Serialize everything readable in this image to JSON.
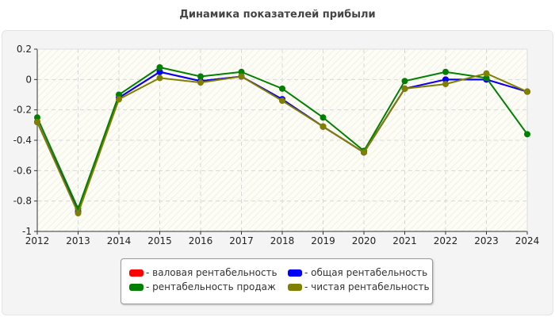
{
  "chart_data": {
    "type": "line",
    "title": "Динамика показателей прибыли",
    "x": [
      "2012",
      "2013",
      "2014",
      "2015",
      "2016",
      "2017",
      "2018",
      "2019",
      "2020",
      "2021",
      "2022",
      "2023",
      "2024"
    ],
    "ylim": [
      -1,
      0.2
    ],
    "yticks": [
      "0.2",
      "0",
      "-0.2",
      "-0.4",
      "-0.6",
      "-0.8",
      "-1"
    ],
    "ytick_values": [
      0.2,
      0,
      -0.2,
      -0.4,
      -0.6,
      -0.8,
      -1
    ],
    "grid": true,
    "legend_placement": "bottom",
    "series": [
      {
        "name": "- валовая рентабельность",
        "color": "#ff0000",
        "values": [
          -0.28,
          -0.87,
          -0.12,
          0.05,
          -0.01,
          0.02,
          -0.13,
          -0.31,
          -0.48,
          -0.06,
          0.0,
          0.0,
          -0.08
        ]
      },
      {
        "name": "- общая рентабельность",
        "color": "#0000ff",
        "values": [
          -0.28,
          -0.87,
          -0.12,
          0.05,
          -0.01,
          0.02,
          -0.13,
          -0.31,
          -0.48,
          -0.06,
          0.0,
          0.0,
          -0.08
        ]
      },
      {
        "name": "- рентабельность продаж",
        "color": "#008000",
        "values": [
          -0.25,
          -0.85,
          -0.1,
          0.08,
          0.02,
          0.05,
          -0.06,
          -0.25,
          -0.47,
          -0.01,
          0.05,
          0.01,
          -0.36
        ]
      },
      {
        "name": "- чистая рентабельность",
        "color": "#808000",
        "values": [
          -0.28,
          -0.88,
          -0.13,
          0.01,
          -0.02,
          0.02,
          -0.14,
          -0.31,
          -0.48,
          -0.06,
          -0.03,
          0.04,
          -0.08
        ]
      }
    ]
  }
}
